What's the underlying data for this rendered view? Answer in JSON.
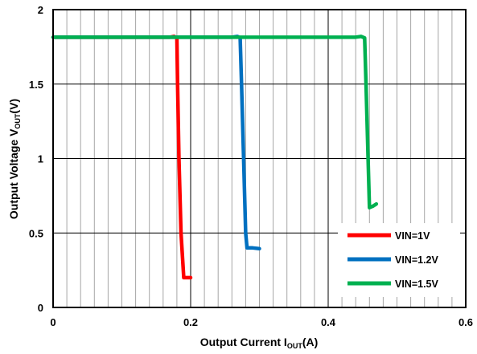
{
  "chart_data": {
    "type": "line",
    "xlabel": {
      "main": "Output Current I",
      "sub": "OUT",
      "tail": "(A)"
    },
    "ylabel": {
      "main": "Output Voltage V",
      "sub": "OUT",
      "tail": "(V)"
    },
    "xlim": [
      0,
      0.6
    ],
    "ylim": [
      0,
      2
    ],
    "x_ticks": [
      "0",
      "0.2",
      "0.4",
      "0.6"
    ],
    "y_ticks": [
      "0",
      "0.5",
      "1",
      "1.5",
      "2"
    ],
    "x_minor_step": 0.02,
    "x_major_step": 0.2,
    "y_major_step": 0.5,
    "grid": true,
    "legend_position": "bottom-right",
    "series": [
      {
        "name": "VIN=1V",
        "color": "#ff0000",
        "points": [
          [
            0,
            1.815
          ],
          [
            0.17,
            1.815
          ],
          [
            0.176,
            1.82
          ],
          [
            0.18,
            1.81
          ],
          [
            0.181,
            1.5
          ],
          [
            0.183,
            1.0
          ],
          [
            0.186,
            0.5
          ],
          [
            0.19,
            0.2
          ],
          [
            0.2,
            0.2
          ]
        ]
      },
      {
        "name": "VIN=1.2V",
        "color": "#0070c0",
        "points": [
          [
            0,
            1.815
          ],
          [
            0.26,
            1.815
          ],
          [
            0.268,
            1.82
          ],
          [
            0.272,
            1.81
          ],
          [
            0.274,
            1.5
          ],
          [
            0.277,
            1.0
          ],
          [
            0.28,
            0.5
          ],
          [
            0.282,
            0.4
          ],
          [
            0.29,
            0.4
          ],
          [
            0.3,
            0.395
          ]
        ]
      },
      {
        "name": "VIN=1.5V",
        "color": "#00b050",
        "points": [
          [
            0,
            1.815
          ],
          [
            0.44,
            1.815
          ],
          [
            0.448,
            1.82
          ],
          [
            0.453,
            1.81
          ],
          [
            0.455,
            1.5
          ],
          [
            0.458,
            1.0
          ],
          [
            0.46,
            0.67
          ],
          [
            0.465,
            0.68
          ],
          [
            0.47,
            0.695
          ]
        ]
      }
    ]
  }
}
